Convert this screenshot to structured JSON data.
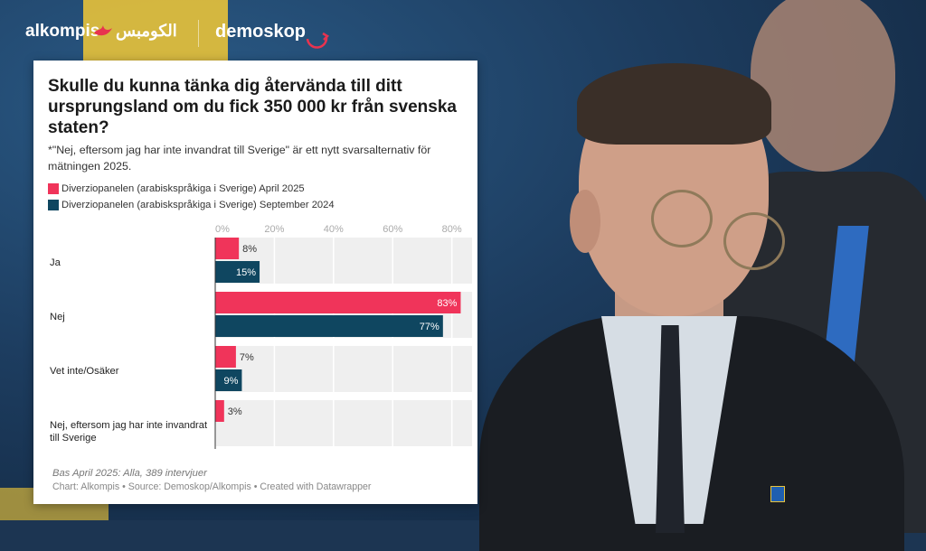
{
  "header": {
    "alkompis": "alkompis",
    "alkompis_arabic": "الكومبس",
    "demoskop": "demoskop"
  },
  "card": {
    "title": "Skulle du kunna tänka dig återvända till ditt ursprungsland om du fick 350 000 kr från svenska staten?",
    "note": "*\"Nej, eftersom jag har inte invandrat till Sverige\" är ett nytt svarsalternativ för mätningen 2025.",
    "footer_base": "Bas April 2025: Alla, 389 intervjuer",
    "footer_source": "Chart: Alkompis • Source: Demoskop/Alkompis • Created with Datawrapper"
  },
  "chart_data": {
    "type": "bar",
    "orientation": "horizontal",
    "title": "Skulle du kunna tänka dig återvända till ditt ursprungsland om du fick 350 000 kr från svenska staten?",
    "categories": [
      "Ja",
      "Nej",
      "Vet inte/Osäker",
      "Nej, eftersom jag har inte invandrat till Sverige"
    ],
    "category_labels": [
      [
        "Ja"
      ],
      [
        "Nej"
      ],
      [
        "Vet inte/Osäker"
      ],
      [
        "Nej, eftersom jag har inte invandrat",
        "till Sverige"
      ]
    ],
    "series": [
      {
        "name": "Diverziopanelen (arabiskspråkiga i Sverige) April 2025",
        "color": "#f0345a",
        "values": [
          8,
          83,
          7,
          3
        ]
      },
      {
        "name": "Diverziopanelen (arabiskspråkiga i Sverige) September 2024",
        "color": "#0f4660",
        "values": [
          15,
          77,
          9,
          null
        ]
      }
    ],
    "xlim": [
      0,
      85
    ],
    "xticks": [
      0,
      20,
      40,
      60,
      80
    ],
    "xtick_labels": [
      "0%",
      "20%",
      "40%",
      "60%",
      "80%"
    ],
    "value_suffix": "%",
    "legend_position": "top-left",
    "grid": true
  }
}
